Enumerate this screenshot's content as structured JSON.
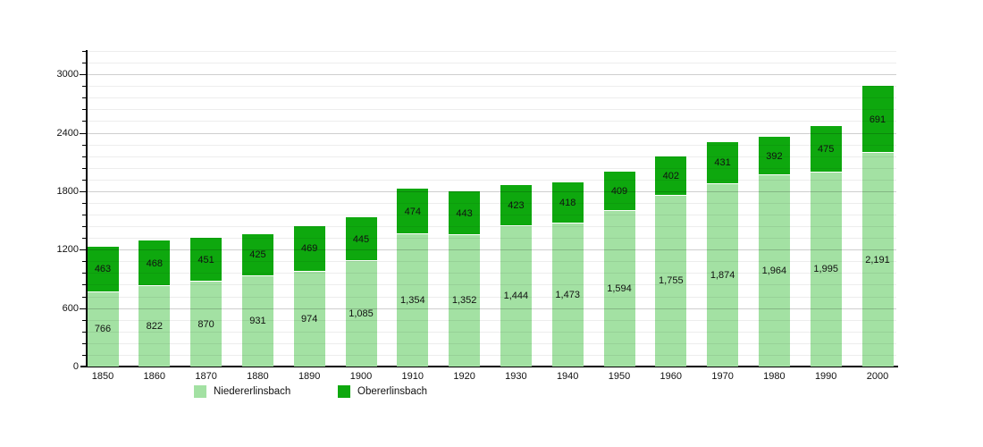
{
  "chart_data": {
    "type": "bar",
    "stacked": true,
    "title": "",
    "xlabel": "",
    "ylabel": "",
    "categories": [
      "1850",
      "1860",
      "1870",
      "1880",
      "1890",
      "1900",
      "1910",
      "1920",
      "1930",
      "1940",
      "1950",
      "1960",
      "1970",
      "1980",
      "1990",
      "2000"
    ],
    "series": [
      {
        "name": "Niedererlinsbach",
        "color": "#a3e1a3",
        "values": [
          766,
          822,
          870,
          931,
          974,
          1085,
          1354,
          1352,
          1444,
          1473,
          1594,
          1755,
          1874,
          1964,
          1995,
          2191
        ]
      },
      {
        "name": "Obererlinsbach",
        "color": "#0ea80e",
        "values": [
          463,
          468,
          451,
          425,
          469,
          445,
          474,
          443,
          423,
          418,
          409,
          402,
          431,
          392,
          475,
          691
        ]
      }
    ],
    "ylim": [
      0,
      3240
    ],
    "yticks": [
      0,
      600,
      1200,
      1800,
      2400,
      3000
    ],
    "minor_grid_step": 120,
    "major_grid_step": 600,
    "grid": true,
    "grid_minor_color": "rgba(0,0,0,0.07)",
    "grid_major_color": "rgba(0,0,0,0.19)",
    "axis_color": "#000000",
    "value_label_color": "#111111",
    "legend_position": "bottom"
  },
  "legend": {
    "items": [
      {
        "label": "Niedererlinsbach",
        "color": "#a3e1a3"
      },
      {
        "label": "Obererlinsbach",
        "color": "#0ea80e"
      }
    ]
  }
}
